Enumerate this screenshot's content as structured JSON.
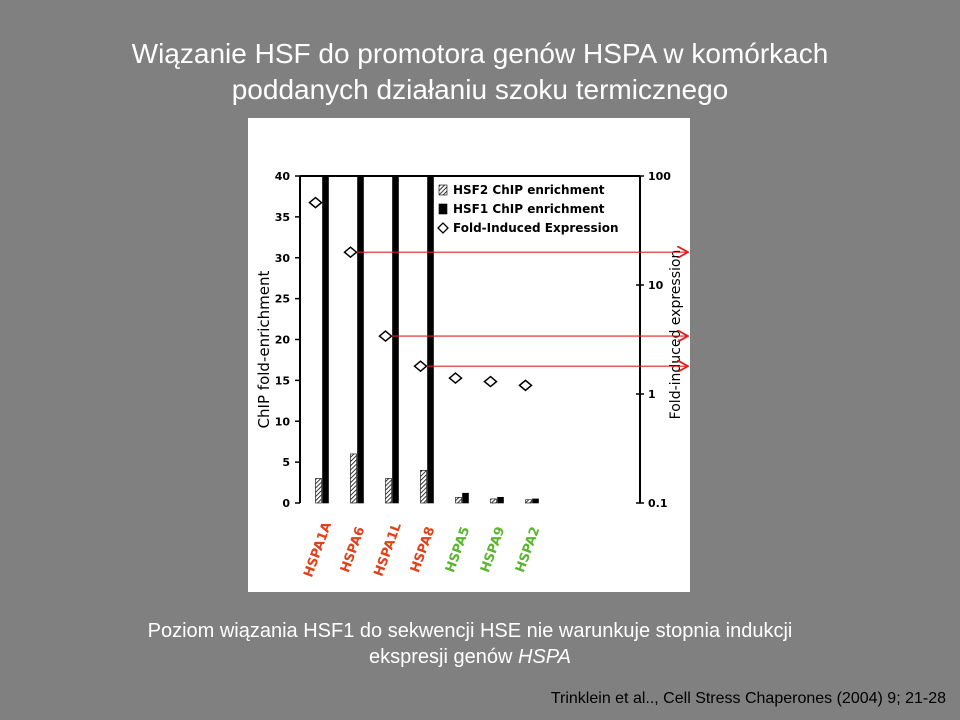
{
  "slide": {
    "title": [
      "Wiązanie HSF do promotora genów HSPA w komórkach",
      "poddanych działaniu szoku termicznego"
    ],
    "caption": [
      "Poziom wiązania HSF1 do sekwencji HSE nie warunkuje stopnia indukcji",
      "ekspresji genów"
    ],
    "caption_italic": "HSPA",
    "citation": "Trinklein et al.., Cell Stress Chaperones (2004) 9; 21-28"
  },
  "chart_data": {
    "type": "bar",
    "y_label": "ChIP fold-enrichment",
    "y2_label": "Fold-induced expression",
    "categories": [
      "HSPA1A",
      "HSPA6",
      "HSPA1L",
      "HSPA8",
      "HSPA5",
      "HSPA9",
      "HSPA2"
    ],
    "category_colors": [
      "#e0411a",
      "#e0411a",
      "#e0411a",
      "#e0411a",
      "#5cb531",
      "#5cb531",
      "#5cb531"
    ],
    "series": [
      {
        "name": "HSF2 ChIP enrichment",
        "color": "#000000",
        "hatch": true,
        "values": [
          3,
          6,
          3,
          4,
          0.7,
          0.5,
          0.4
        ]
      },
      {
        "name": "HSF1 ChIP enrichment",
        "color": "#000000",
        "values": [
          40,
          40,
          40,
          40,
          1.2,
          0.7,
          0.5
        ]
      },
      {
        "name": "Fold-Induced Expression",
        "color": "#000000",
        "marker": "diamond",
        "axis": "y2",
        "values": [
          57,
          20,
          3.4,
          1.8,
          1.4,
          1.3,
          1.2
        ]
      }
    ],
    "ylim": [
      0,
      40
    ],
    "yticks": [
      0,
      5,
      10,
      15,
      20,
      25,
      30,
      35,
      40
    ],
    "y2lim": [
      0.1,
      100
    ],
    "y2ticks": [
      0.1,
      1,
      10,
      100
    ],
    "y2_log": true,
    "legend": "top-right",
    "arrow_color": "#e02020"
  }
}
